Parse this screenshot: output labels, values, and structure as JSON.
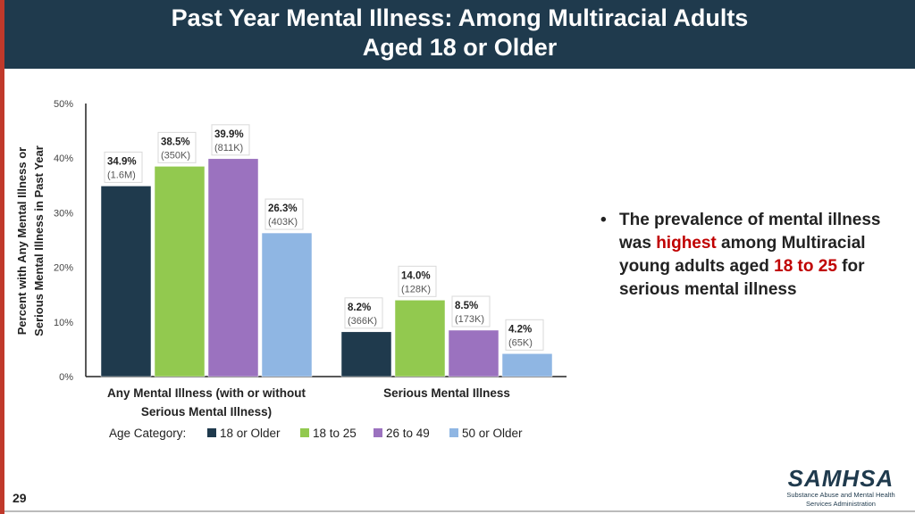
{
  "header": {
    "title_line1": "Past Year Mental Illness: Among Multiracial Adults",
    "title_line2": "Aged 18 or Older"
  },
  "bullet": {
    "p1": "The prevalence of mental illness was ",
    "highlight1": "highest",
    "p2": " among Multiracial young adults aged ",
    "highlight2": "18 to 25",
    "p3": " for serious mental illness"
  },
  "page_number": "29",
  "logo": {
    "brand": "SAMHSA",
    "sub1": "Substance Abuse and Mental Health",
    "sub2": "Services Administration"
  },
  "chart_data": {
    "type": "bar",
    "ylabel_line1": "Percent with Any Mental Illness or",
    "ylabel_line2": "Serious Mental Illness in Past Year",
    "ylim": [
      0,
      50
    ],
    "yticks": [
      "0%",
      "10%",
      "20%",
      "30%",
      "40%",
      "50%"
    ],
    "categories": [
      {
        "line1": "Any Mental Illness (with or without",
        "line2": "Serious Mental Illness)"
      },
      {
        "line1": "Serious Mental Illness",
        "line2": ""
      }
    ],
    "legend_title": "Age Category:",
    "legend_position": "bottom",
    "series": [
      {
        "name": "18 or Older",
        "color": "#1f3a4d",
        "values": [
          34.9,
          8.2
        ],
        "labels": [
          "34.9%",
          "8.2%"
        ],
        "counts": [
          "(1.6M)",
          "(366K)"
        ]
      },
      {
        "name": "18 to 25",
        "color": "#92c94f",
        "values": [
          38.5,
          14.0
        ],
        "labels": [
          "38.5%",
          "14.0%"
        ],
        "counts": [
          "(350K)",
          "(128K)"
        ]
      },
      {
        "name": "26 to 49",
        "color": "#9b72bf",
        "values": [
          39.9,
          8.5
        ],
        "labels": [
          "39.9%",
          "8.5%"
        ],
        "counts": [
          "(811K)",
          "(173K)"
        ]
      },
      {
        "name": "50 or Older",
        "color": "#8fb6e3",
        "values": [
          26.3,
          4.2
        ],
        "labels": [
          "26.3%",
          "4.2%"
        ],
        "counts": [
          "(403K)",
          "(65K)"
        ]
      }
    ]
  }
}
